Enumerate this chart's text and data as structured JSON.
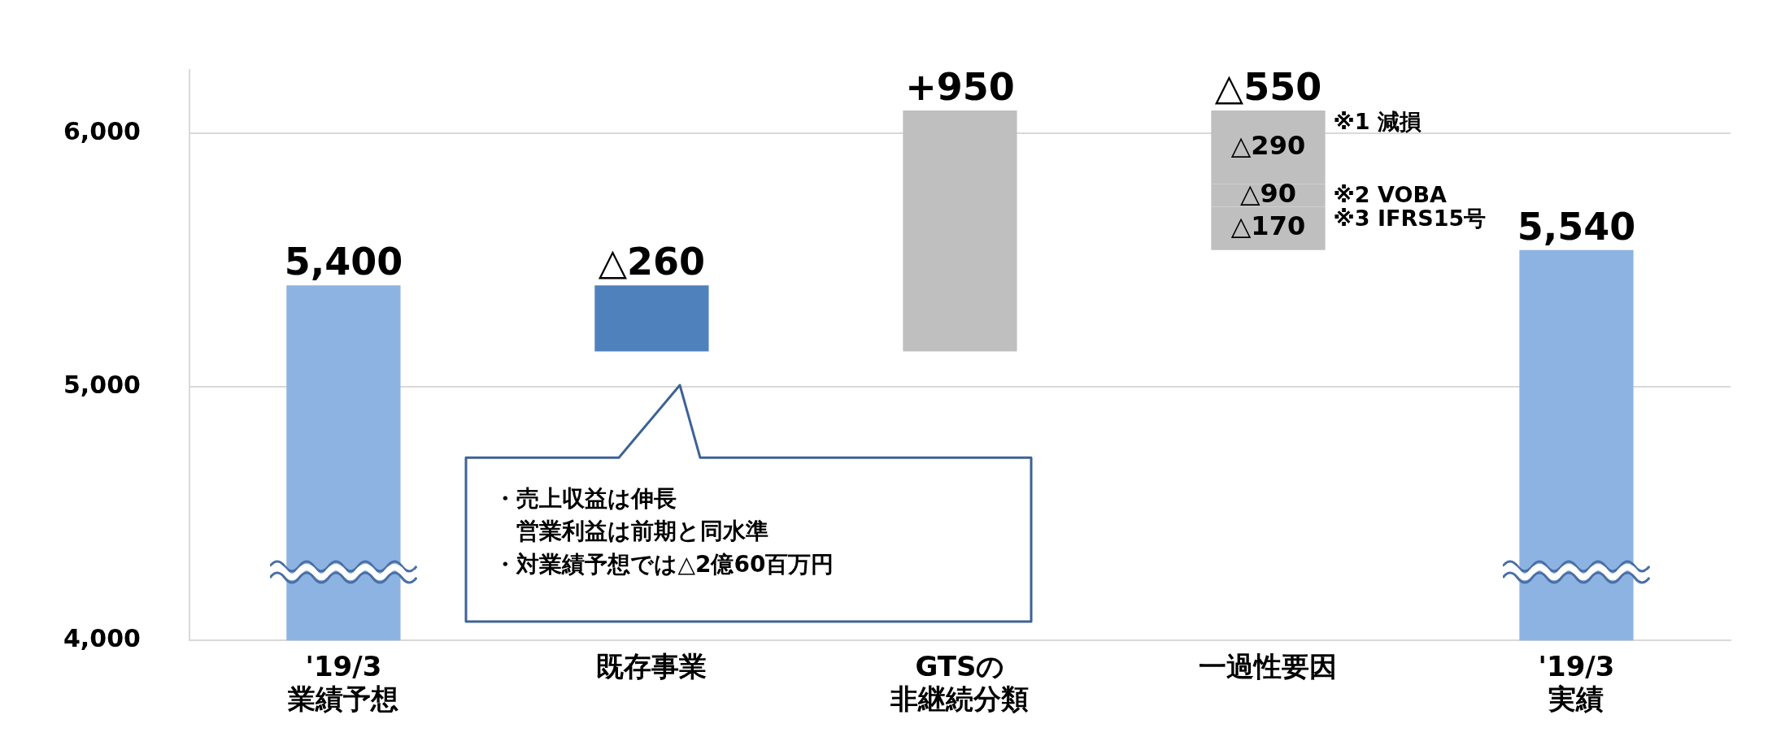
{
  "chart_data": {
    "type": "bar",
    "categories": [
      "'19/3 業績予想",
      "既存事業",
      "GTSの非継続分類",
      "一過性要因",
      "'19/3 実績"
    ],
    "series": [
      {
        "colors": [
          "#8db3e2",
          "#4f81bd",
          "#bfbfbf",
          "#bfbfbf",
          "#8db3e2"
        ],
        "values": [
          5400,
          -260,
          950,
          null,
          5540
        ],
        "base": [
          null,
          5400,
          5140,
          null,
          null
        ],
        "value_labels": [
          "5,400",
          "△260",
          "+950",
          null,
          "5,540"
        ]
      },
      {
        "color": "#bfbfbf",
        "values": [
          null,
          null,
          null,
          -290,
          null
        ],
        "base": [
          null,
          null,
          null,
          6090,
          null
        ],
        "value_labels": [
          null,
          null,
          null,
          "△290",
          null
        ]
      },
      {
        "color": "#bfbfbf",
        "values": [
          null,
          null,
          null,
          -90,
          null
        ],
        "base": [
          null,
          null,
          null,
          5800,
          null
        ],
        "value_labels": [
          null,
          null,
          null,
          "△90",
          null
        ]
      },
      {
        "color": "#bfbfbf",
        "values": [
          null,
          null,
          null,
          -170,
          null
        ],
        "base": [
          null,
          null,
          null,
          5710,
          null
        ],
        "value_labels": [
          null,
          null,
          null,
          "△170",
          null
        ]
      }
    ],
    "ylim": [
      4000,
      6250
    ],
    "yticks": [
      {
        "value": 4000,
        "label": "4,000"
      },
      {
        "value": 5000,
        "label": "5,000"
      },
      {
        "value": 6000,
        "label": "6,000"
      }
    ],
    "grid": "y",
    "annotations": [
      {
        "text": "△550",
        "x": "一過性要因",
        "y": 6090
      },
      "※1 減損",
      "※2 VOBA",
      "※3 IFRS15号",
      "・売上収益は伸長",
      "営業利益は前期と同水準",
      "・対業績予想では△2億60百万円"
    ]
  }
}
